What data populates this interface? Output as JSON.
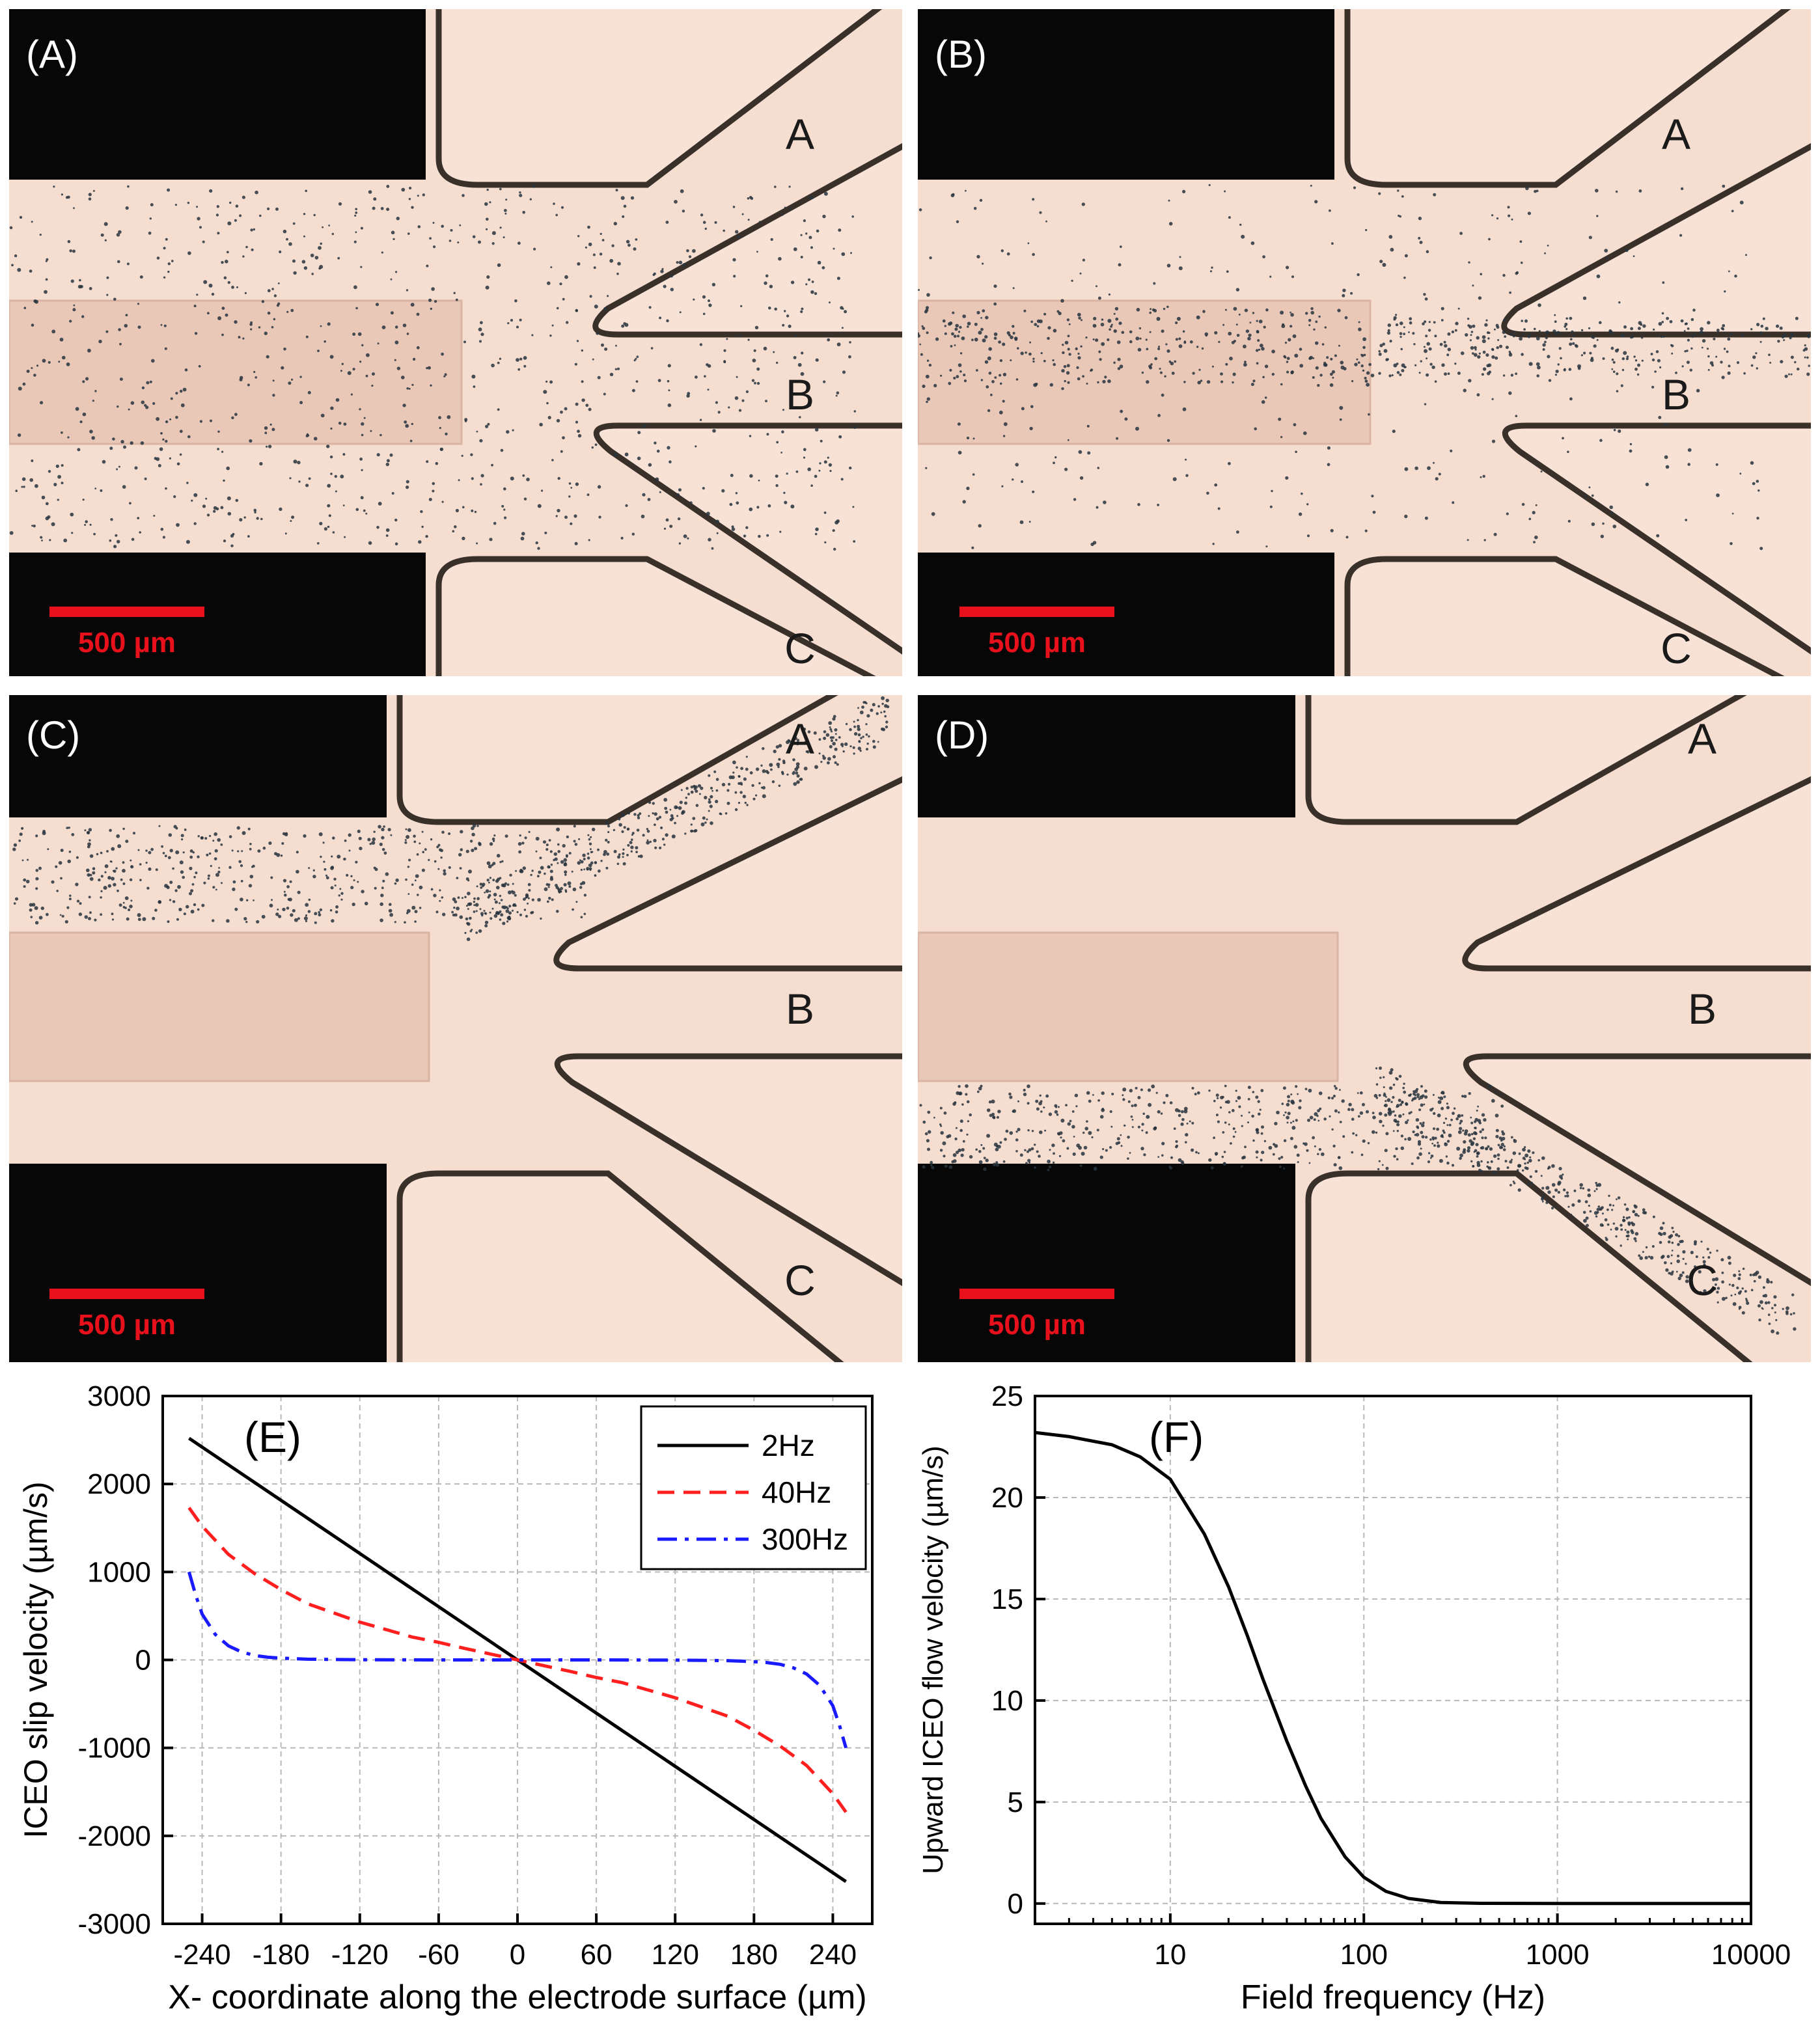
{
  "micrographs": [
    {
      "id": "A",
      "label": "(A)",
      "outlets": [
        "A",
        "B",
        "C"
      ],
      "scale_bar": "500 µm",
      "pattern": "uniform"
    },
    {
      "id": "B",
      "label": "(B)",
      "outlets": [
        "A",
        "B",
        "C"
      ],
      "scale_bar": "500 µm",
      "pattern": "center"
    },
    {
      "id": "C",
      "label": "(C)",
      "outlets": [
        "A",
        "B",
        "C"
      ],
      "scale_bar": "500 µm",
      "pattern": "up"
    },
    {
      "id": "D",
      "label": "(D)",
      "outlets": [
        "A",
        "B",
        "C"
      ],
      "scale_bar": "500 µm",
      "pattern": "down"
    }
  ],
  "colors": {
    "channel": "#f5ddd0",
    "electrode_dark": "#070707",
    "wall": "#3a302a",
    "particle": "#27343e",
    "scale_bar": "#e8101a",
    "series_2hz": "#000000",
    "series_40hz": "#ff1f1f",
    "series_300hz": "#1a1aff"
  },
  "chart_data": [
    {
      "panel_label": "(E)",
      "type": "line",
      "xlabel": "X- coordinate along the electrode surface (µm)",
      "ylabel": "ICEO slip velocity (µm/s)",
      "xlim": [
        -270,
        270
      ],
      "ylim": [
        -3000,
        3000
      ],
      "xticks": [
        -240,
        -180,
        -120,
        -60,
        0,
        60,
        120,
        180,
        240
      ],
      "yticks": [
        -3000,
        -2000,
        -1000,
        0,
        1000,
        2000,
        3000
      ],
      "grid": true,
      "legend_position": "top-right",
      "series": [
        {
          "name": "2Hz",
          "style": "solid",
          "x": [
            -250,
            250
          ],
          "y": [
            2520,
            -2520
          ]
        },
        {
          "name": "40Hz",
          "style": "dashed",
          "x": [
            -250,
            -240,
            -220,
            -200,
            -180,
            -160,
            -120,
            -80,
            -60,
            -40,
            0,
            40,
            60,
            80,
            120,
            160,
            180,
            200,
            220,
            240,
            250
          ],
          "y": [
            1730,
            1520,
            1200,
            980,
            800,
            640,
            430,
            260,
            200,
            130,
            0,
            -130,
            -200,
            -260,
            -430,
            -640,
            -800,
            -980,
            -1200,
            -1520,
            -1730
          ]
        },
        {
          "name": "300Hz",
          "style": "dash-dot",
          "x": [
            -250,
            -245,
            -240,
            -230,
            -220,
            -210,
            -200,
            -190,
            -180,
            -160,
            -120,
            -60,
            0,
            60,
            120,
            160,
            180,
            190,
            200,
            210,
            220,
            230,
            240,
            245,
            250
          ],
          "y": [
            1000,
            740,
            520,
            290,
            160,
            90,
            50,
            30,
            20,
            8,
            2,
            0,
            0,
            0,
            -2,
            -8,
            -20,
            -30,
            -50,
            -90,
            -160,
            -290,
            -520,
            -740,
            -1000
          ]
        }
      ]
    },
    {
      "panel_label": "(F)",
      "type": "line",
      "xlabel": "Field frequency (Hz)",
      "ylabel": "Upward ICEO flow velocity (µm/s)",
      "xscale": "log",
      "xlim": [
        2,
        10000
      ],
      "ylim": [
        -1,
        25
      ],
      "xticks": [
        10,
        100,
        1000,
        10000
      ],
      "yticks": [
        0,
        5,
        10,
        15,
        20,
        25
      ],
      "grid": true,
      "series": [
        {
          "name": "",
          "style": "solid",
          "x": [
            2,
            3,
            5,
            7,
            10,
            15,
            20,
            25,
            30,
            40,
            50,
            60,
            80,
            100,
            130,
            170,
            250,
            400,
            1000,
            10000
          ],
          "y": [
            23.2,
            23.0,
            22.6,
            22.0,
            20.9,
            18.2,
            15.6,
            13.2,
            11.1,
            8.0,
            5.8,
            4.2,
            2.3,
            1.3,
            0.6,
            0.25,
            0.05,
            0.01,
            0,
            0
          ]
        }
      ]
    }
  ]
}
